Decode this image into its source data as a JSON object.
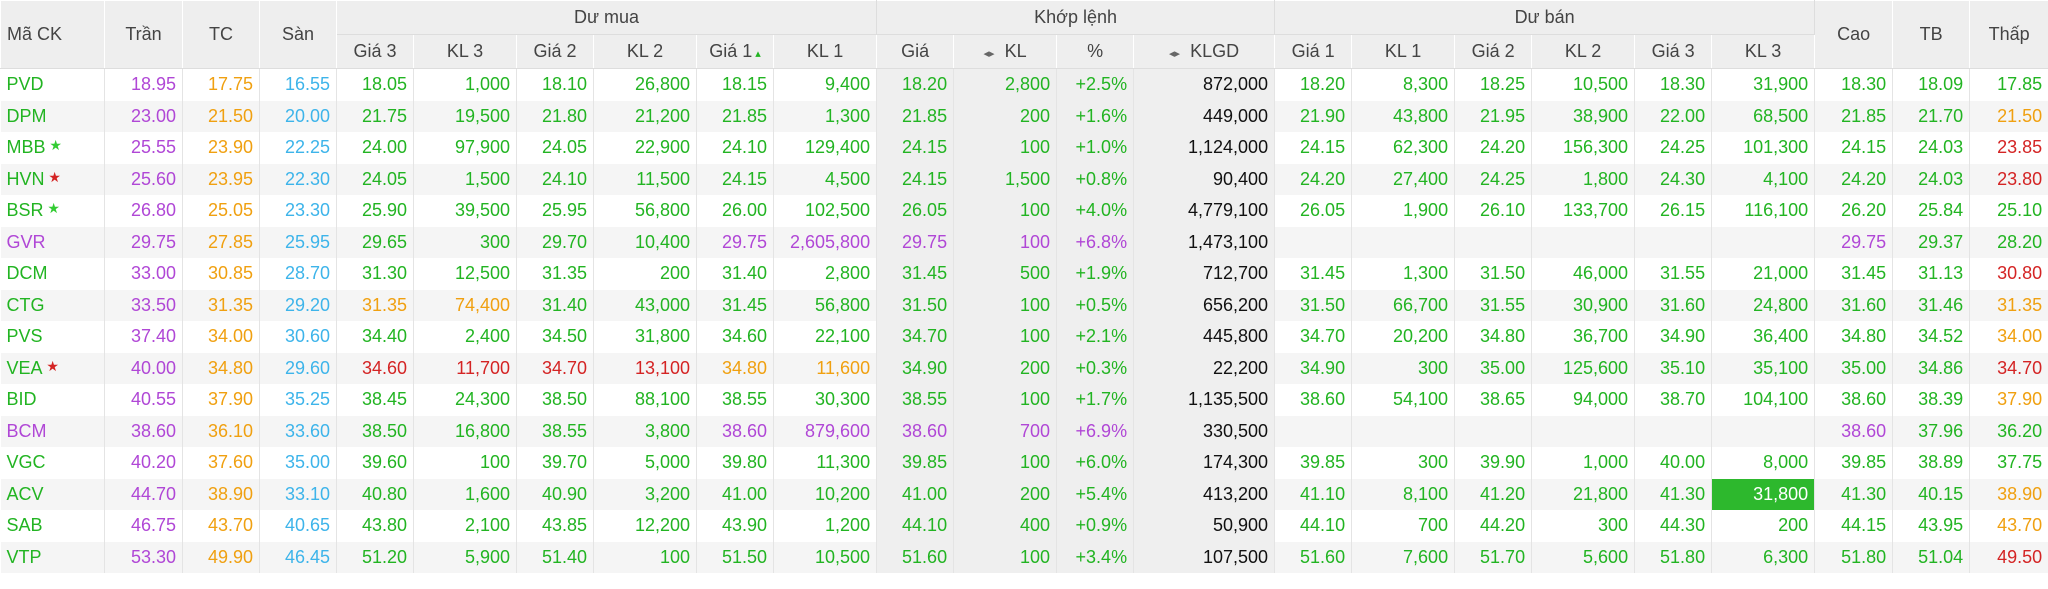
{
  "header": {
    "groups": [
      "Dư mua",
      "Khớp lệnh",
      "Dư bán"
    ],
    "columns": [
      "Mã CK",
      "Trần",
      "TC",
      "Sàn",
      "Giá 3",
      "KL 3",
      "Giá 2",
      "KL 2",
      "Giá 1",
      "KL 1",
      "Giá",
      "KL",
      "%",
      "KLGD",
      "Giá 1",
      "KL 1",
      "Giá 2",
      "KL 2",
      "Giá 3",
      "KL 3",
      "Cao",
      "TB",
      "Thấp"
    ]
  },
  "table": {
    "rows": [
      {
        "symbol": "PVD",
        "cells": [
          "18.95",
          "17.75",
          "16.55",
          "18.05",
          "1,000",
          "18.10",
          "26,800",
          "18.15",
          "9,400",
          "18.20",
          "2,800",
          "+2.5%",
          "872,000",
          "18.20",
          "8,300",
          "18.25",
          "10,500",
          "18.30",
          "31,900",
          "18.30",
          "18.09",
          "17.85"
        ]
      },
      {
        "symbol": "DPM",
        "cells": [
          "23.00",
          "21.50",
          "20.00",
          "21.75",
          "19,500",
          "21.80",
          "21,200",
          "21.85",
          "1,300",
          "21.85",
          "200",
          "+1.6%",
          "449,000",
          "21.90",
          "43,800",
          "21.95",
          "38,900",
          "22.00",
          "68,500",
          "21.85",
          "21.70",
          "21.50"
        ]
      },
      {
        "symbol": "MBB",
        "cells": [
          "25.55",
          "23.90",
          "22.25",
          "24.00",
          "97,900",
          "24.05",
          "22,900",
          "24.10",
          "129,400",
          "24.15",
          "100",
          "+1.0%",
          "1,124,000",
          "24.15",
          "62,300",
          "24.20",
          "156,300",
          "24.25",
          "101,300",
          "24.15",
          "24.03",
          "23.85"
        ]
      },
      {
        "symbol": "HVN",
        "cells": [
          "25.60",
          "23.95",
          "22.30",
          "24.05",
          "1,500",
          "24.10",
          "11,500",
          "24.15",
          "4,500",
          "24.15",
          "1,500",
          "+0.8%",
          "90,400",
          "24.20",
          "27,400",
          "24.25",
          "1,800",
          "24.30",
          "4,100",
          "24.20",
          "24.03",
          "23.80"
        ]
      },
      {
        "symbol": "BSR",
        "cells": [
          "26.80",
          "25.05",
          "23.30",
          "25.90",
          "39,500",
          "25.95",
          "56,800",
          "26.00",
          "102,500",
          "26.05",
          "100",
          "+4.0%",
          "4,779,100",
          "26.05",
          "1,900",
          "26.10",
          "133,700",
          "26.15",
          "116,100",
          "26.20",
          "25.84",
          "25.10"
        ]
      },
      {
        "symbol": "GVR",
        "cells": [
          "29.75",
          "27.85",
          "25.95",
          "29.65",
          "300",
          "29.70",
          "10,400",
          "29.75",
          "2,605,800",
          "29.75",
          "100",
          "+6.8%",
          "1,473,100",
          null,
          null,
          null,
          null,
          null,
          null,
          "29.75",
          "29.37",
          "28.20"
        ]
      },
      {
        "symbol": "DCM",
        "cells": [
          "33.00",
          "30.85",
          "28.70",
          "31.30",
          "12,500",
          "31.35",
          "200",
          "31.40",
          "2,800",
          "31.45",
          "500",
          "+1.9%",
          "712,700",
          "31.45",
          "1,300",
          "31.50",
          "46,000",
          "31.55",
          "21,000",
          "31.45",
          "31.13",
          "30.80"
        ]
      },
      {
        "symbol": "CTG",
        "cells": [
          "33.50",
          "31.35",
          "29.20",
          "31.35",
          "74,400",
          "31.40",
          "43,000",
          "31.45",
          "56,800",
          "31.50",
          "100",
          "+0.5%",
          "656,200",
          "31.50",
          "66,700",
          "31.55",
          "30,900",
          "31.60",
          "24,800",
          "31.60",
          "31.46",
          "31.35"
        ]
      },
      {
        "symbol": "PVS",
        "cells": [
          "37.40",
          "34.00",
          "30.60",
          "34.40",
          "2,400",
          "34.50",
          "31,800",
          "34.60",
          "22,100",
          "34.70",
          "100",
          "+2.1%",
          "445,800",
          "34.70",
          "20,200",
          "34.80",
          "36,700",
          "34.90",
          "36,400",
          "34.80",
          "34.52",
          "34.00"
        ]
      },
      {
        "symbol": "VEA",
        "cells": [
          "40.00",
          "34.80",
          "29.60",
          "34.60",
          "11,700",
          "34.70",
          "13,100",
          "34.80",
          "11,600",
          "34.90",
          "200",
          "+0.3%",
          "22,200",
          "34.90",
          "300",
          "35.00",
          "125,600",
          "35.10",
          "35,100",
          "35.00",
          "34.86",
          "34.70"
        ]
      },
      {
        "symbol": "BID",
        "cells": [
          "40.55",
          "37.90",
          "35.25",
          "38.45",
          "24,300",
          "38.50",
          "88,100",
          "38.55",
          "30,300",
          "38.55",
          "100",
          "+1.7%",
          "1,135,500",
          "38.60",
          "54,100",
          "38.65",
          "94,000",
          "38.70",
          "104,100",
          "38.60",
          "38.39",
          "37.90"
        ]
      },
      {
        "symbol": "BCM",
        "cells": [
          "38.60",
          "36.10",
          "33.60",
          "38.50",
          "16,800",
          "38.55",
          "3,800",
          "38.60",
          "879,600",
          "38.60",
          "700",
          "+6.9%",
          "330,500",
          null,
          null,
          null,
          null,
          null,
          null,
          "38.60",
          "37.96",
          "36.20"
        ]
      },
      {
        "symbol": "VGC",
        "cells": [
          "40.20",
          "37.60",
          "35.00",
          "39.60",
          "100",
          "39.70",
          "5,000",
          "39.80",
          "11,300",
          "39.85",
          "100",
          "+6.0%",
          "174,300",
          "39.85",
          "300",
          "39.90",
          "1,000",
          "40.00",
          "8,000",
          "39.85",
          "38.89",
          "37.75"
        ]
      },
      {
        "symbol": "ACV",
        "cells": [
          "44.70",
          "38.90",
          "33.10",
          "40.80",
          "1,600",
          "40.90",
          "3,200",
          "41.00",
          "10,200",
          "41.00",
          "200",
          "+5.4%",
          "413,200",
          "41.10",
          "8,100",
          "41.20",
          "21,800",
          "41.30",
          "31,800",
          "41.30",
          "40.15",
          "38.90"
        ]
      },
      {
        "symbol": "SAB",
        "cells": [
          "46.75",
          "43.70",
          "40.65",
          "43.80",
          "2,100",
          "43.85",
          "12,200",
          "43.90",
          "1,200",
          "44.10",
          "400",
          "+0.9%",
          "50,900",
          "44.10",
          "700",
          "44.20",
          "300",
          "44.30",
          "200",
          "44.15",
          "43.95",
          "43.70"
        ]
      },
      {
        "symbol": "VTP",
        "cells": [
          "53.30",
          "49.90",
          "46.45",
          "51.20",
          "5,900",
          "51.40",
          "100",
          "51.50",
          "10,500",
          "51.60",
          "100",
          "+3.4%",
          "107,500",
          "51.60",
          "7,600",
          "51.70",
          "5,600",
          "51.80",
          "6,300",
          "51.80",
          "51.04",
          "49.50"
        ]
      }
    ]
  }
}
